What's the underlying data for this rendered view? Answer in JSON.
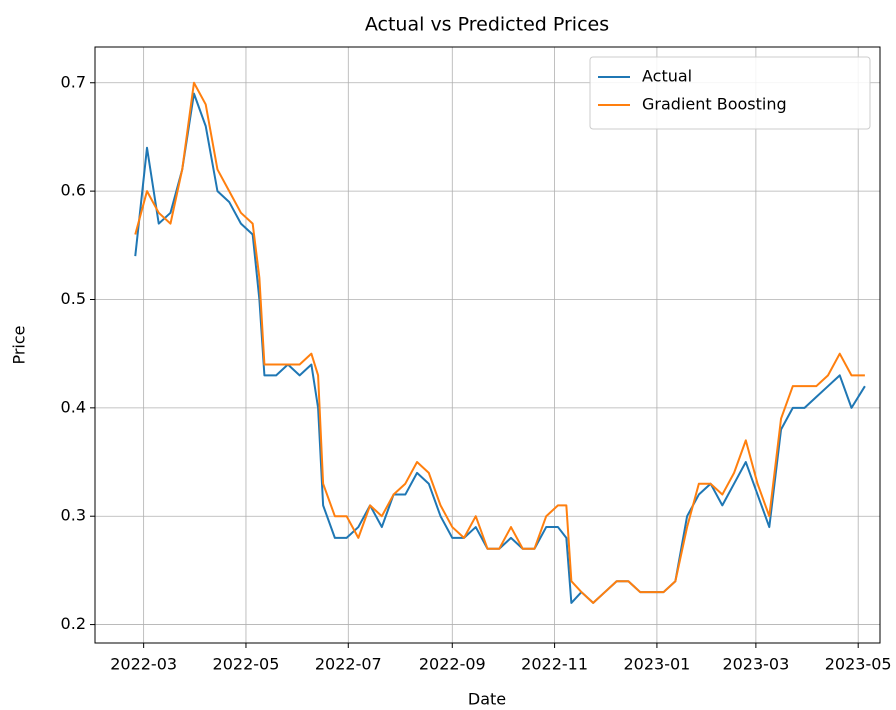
{
  "chart_data": {
    "type": "line",
    "title": "Actual vs Predicted Prices",
    "x_label": "Date",
    "y_label": "Price",
    "x": [
      "2022-02-24",
      "2022-03-03",
      "2022-03-10",
      "2022-03-17",
      "2022-03-24",
      "2022-03-31",
      "2022-04-07",
      "2022-04-14",
      "2022-04-21",
      "2022-04-28",
      "2022-05-05",
      "2022-05-09",
      "2022-05-12",
      "2022-05-19",
      "2022-05-26",
      "2022-06-02",
      "2022-06-09",
      "2022-06-13",
      "2022-06-16",
      "2022-06-23",
      "2022-06-30",
      "2022-07-07",
      "2022-07-14",
      "2022-07-21",
      "2022-07-28",
      "2022-08-04",
      "2022-08-11",
      "2022-08-18",
      "2022-08-25",
      "2022-09-01",
      "2022-09-08",
      "2022-09-15",
      "2022-09-22",
      "2022-09-29",
      "2022-10-06",
      "2022-10-13",
      "2022-10-20",
      "2022-10-27",
      "2022-11-03",
      "2022-11-08",
      "2022-11-11",
      "2022-11-17",
      "2022-11-24",
      "2022-12-01",
      "2022-12-08",
      "2022-12-15",
      "2022-12-22",
      "2022-12-29",
      "2023-01-05",
      "2023-01-12",
      "2023-01-19",
      "2023-01-26",
      "2023-02-02",
      "2023-02-09",
      "2023-02-16",
      "2023-02-23",
      "2023-03-02",
      "2023-03-09",
      "2023-03-16",
      "2023-03-23",
      "2023-03-30",
      "2023-04-06",
      "2023-04-13",
      "2023-04-20",
      "2023-04-27",
      "2023-05-05"
    ],
    "series": [
      {
        "name": "Actual",
        "color": "#1f77b4",
        "values": [
          0.54,
          0.64,
          0.57,
          0.58,
          0.62,
          0.69,
          0.66,
          0.6,
          0.59,
          0.57,
          0.56,
          0.5,
          0.43,
          0.43,
          0.44,
          0.43,
          0.44,
          0.4,
          0.31,
          0.28,
          0.28,
          0.29,
          0.31,
          0.29,
          0.32,
          0.32,
          0.34,
          0.33,
          0.3,
          0.28,
          0.28,
          0.29,
          0.27,
          0.27,
          0.28,
          0.27,
          0.27,
          0.29,
          0.29,
          0.28,
          0.22,
          0.23,
          0.22,
          0.23,
          0.24,
          0.24,
          0.23,
          0.23,
          0.23,
          0.24,
          0.3,
          0.32,
          0.33,
          0.31,
          0.33,
          0.35,
          0.32,
          0.29,
          0.38,
          0.4,
          0.4,
          0.41,
          0.42,
          0.43,
          0.4,
          0.42
        ]
      },
      {
        "name": "Gradient Boosting",
        "color": "#ff7f0e",
        "values": [
          0.56,
          0.6,
          0.58,
          0.57,
          0.62,
          0.7,
          0.68,
          0.62,
          0.6,
          0.58,
          0.57,
          0.52,
          0.44,
          0.44,
          0.44,
          0.44,
          0.45,
          0.43,
          0.33,
          0.3,
          0.3,
          0.28,
          0.31,
          0.3,
          0.32,
          0.33,
          0.35,
          0.34,
          0.31,
          0.29,
          0.28,
          0.3,
          0.27,
          0.27,
          0.29,
          0.27,
          0.27,
          0.3,
          0.31,
          0.31,
          0.24,
          0.23,
          0.22,
          0.23,
          0.24,
          0.24,
          0.23,
          0.23,
          0.23,
          0.24,
          0.29,
          0.33,
          0.33,
          0.32,
          0.34,
          0.37,
          0.33,
          0.3,
          0.39,
          0.42,
          0.42,
          0.42,
          0.43,
          0.45,
          0.43,
          0.43
        ]
      }
    ],
    "xlim": [
      "2022-01-31",
      "2023-05-14"
    ],
    "xticks": [
      {
        "value": "2022-03-01",
        "label": "2022-03"
      },
      {
        "value": "2022-05-01",
        "label": "2022-05"
      },
      {
        "value": "2022-07-01",
        "label": "2022-07"
      },
      {
        "value": "2022-09-01",
        "label": "2022-09"
      },
      {
        "value": "2022-11-01",
        "label": "2022-11"
      },
      {
        "value": "2023-01-01",
        "label": "2023-01"
      },
      {
        "value": "2023-03-01",
        "label": "2023-03"
      },
      {
        "value": "2023-05-01",
        "label": "2023-05"
      }
    ],
    "ylim": [
      0.183,
      0.733
    ],
    "yticks": [
      0.2,
      0.3,
      0.4,
      0.5,
      0.6,
      0.7
    ],
    "grid": true,
    "legend": "upper right"
  }
}
